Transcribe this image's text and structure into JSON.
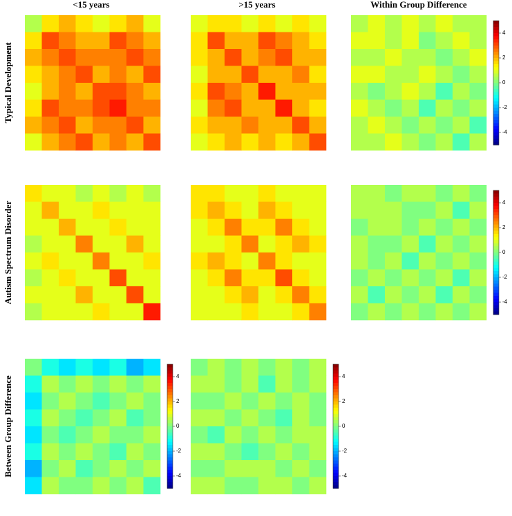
{
  "column_titles": [
    "<15 years",
    ">15 years",
    "Within Group Difference"
  ],
  "row_titles": [
    "Typical Development",
    "Autism Spectrum Disorder",
    "Between Group Difference"
  ],
  "chart_data": [
    {
      "type": "heatmap",
      "zlim": [
        -5,
        5
      ],
      "colorbar": false,
      "values": [
        [
          0.5,
          1.5,
          2,
          1.5,
          1,
          1.5,
          2,
          1
        ],
        [
          1.5,
          3,
          2.5,
          2,
          2,
          3,
          2.5,
          2
        ],
        [
          2,
          2.5,
          3,
          2.5,
          2.5,
          2.5,
          3,
          2.5
        ],
        [
          1.5,
          2,
          2.5,
          3,
          2,
          2.5,
          2,
          3
        ],
        [
          1,
          2,
          2.5,
          2,
          3,
          3,
          2.5,
          2
        ],
        [
          1.5,
          3,
          2.5,
          2.5,
          3,
          3.5,
          2.5,
          2.5
        ],
        [
          2,
          2.5,
          3,
          2,
          2.5,
          2.5,
          3,
          2
        ],
        [
          1,
          2,
          2.5,
          3,
          2,
          2.5,
          2,
          3
        ]
      ]
    },
    {
      "type": "heatmap",
      "zlim": [
        -5,
        5
      ],
      "colorbar": false,
      "values": [
        [
          1,
          1.5,
          1.5,
          1,
          1.5,
          1,
          1.5,
          1
        ],
        [
          1.5,
          3,
          2,
          2,
          3,
          2.5,
          2,
          1.5
        ],
        [
          1.5,
          2,
          3,
          2,
          2.5,
          3,
          2,
          2
        ],
        [
          1,
          2,
          2,
          3,
          2,
          2,
          2.5,
          1.5
        ],
        [
          1.5,
          3,
          2.5,
          2,
          3.5,
          2,
          2,
          2
        ],
        [
          1,
          2.5,
          3,
          2,
          2,
          3.5,
          2,
          1.5
        ],
        [
          1.5,
          2,
          2,
          2.5,
          2,
          2,
          3,
          2
        ],
        [
          1,
          1.5,
          2,
          1.5,
          2,
          1.5,
          2,
          3
        ]
      ]
    },
    {
      "type": "heatmap",
      "zlim": [
        -5,
        5
      ],
      "colorbar": true,
      "zticks": [
        4,
        2,
        0,
        -2,
        -4
      ],
      "values": [
        [
          0.5,
          1,
          0.5,
          1,
          0.5,
          1,
          0.5,
          0.5
        ],
        [
          1,
          1,
          0.5,
          1,
          0,
          0.5,
          1,
          0.5
        ],
        [
          0.5,
          0.5,
          1,
          0.5,
          0.5,
          0,
          0.5,
          1
        ],
        [
          1,
          1,
          0.5,
          0.5,
          1,
          0.5,
          0,
          0.5
        ],
        [
          0.5,
          0,
          0.5,
          1,
          0.5,
          -0.5,
          0.5,
          0
        ],
        [
          1,
          0.5,
          0,
          0.5,
          -0.5,
          0.5,
          0,
          0.5
        ],
        [
          0.5,
          1,
          0.5,
          0,
          0.5,
          0,
          0.5,
          -0.5
        ],
        [
          0.5,
          0.5,
          1,
          0.5,
          0,
          0.5,
          -0.5,
          0.5
        ]
      ]
    },
    {
      "type": "heatmap",
      "zlim": [
        -5,
        5
      ],
      "colorbar": false,
      "values": [
        [
          1.5,
          1,
          1,
          0.5,
          1,
          0.5,
          1,
          0.5
        ],
        [
          1,
          2,
          1,
          1,
          1.5,
          1,
          1,
          1
        ],
        [
          1,
          1,
          2,
          1,
          1,
          1.5,
          1,
          1
        ],
        [
          0.5,
          1,
          1,
          2.5,
          1,
          1,
          2,
          1
        ],
        [
          1,
          1.5,
          1,
          1,
          2.5,
          1,
          1,
          1.5
        ],
        [
          0.5,
          1,
          1.5,
          1,
          1,
          3,
          1,
          1
        ],
        [
          1,
          1,
          1,
          2,
          1,
          1,
          3,
          1
        ],
        [
          0.5,
          1,
          1,
          1,
          1.5,
          1,
          1,
          3.5
        ]
      ]
    },
    {
      "type": "heatmap",
      "zlim": [
        -5,
        5
      ],
      "colorbar": false,
      "values": [
        [
          1.5,
          1.5,
          1,
          1,
          1.5,
          1,
          1,
          1
        ],
        [
          1.5,
          2,
          1.5,
          1,
          2,
          1.5,
          1,
          1
        ],
        [
          1,
          1.5,
          2.5,
          1.5,
          1.5,
          2.5,
          1.5,
          1
        ],
        [
          1,
          1,
          1.5,
          2.5,
          1,
          1.5,
          2,
          1.5
        ],
        [
          1.5,
          2,
          1.5,
          1,
          2.5,
          1.5,
          1,
          1
        ],
        [
          1,
          1.5,
          2.5,
          1.5,
          1.5,
          3,
          1.5,
          1
        ],
        [
          1,
          1,
          1.5,
          2,
          1,
          1.5,
          2.5,
          1.5
        ],
        [
          1,
          1,
          1,
          1.5,
          1,
          1,
          1.5,
          2.5
        ]
      ]
    },
    {
      "type": "heatmap",
      "zlim": [
        -5,
        5
      ],
      "colorbar": true,
      "zticks": [
        4,
        2,
        0,
        -2,
        -4
      ],
      "values": [
        [
          0.5,
          0.5,
          0,
          0.5,
          0.5,
          0,
          0.5,
          0
        ],
        [
          0.5,
          0.5,
          0.5,
          0,
          0,
          0.5,
          -0.5,
          0.5
        ],
        [
          0,
          0.5,
          0.5,
          0,
          0.5,
          0,
          0.5,
          0
        ],
        [
          0.5,
          0,
          0,
          0.5,
          -0.5,
          0.5,
          0,
          0.5
        ],
        [
          0.5,
          0,
          0.5,
          -0.5,
          0.5,
          0,
          0.5,
          0
        ],
        [
          0,
          0.5,
          0,
          0.5,
          0,
          0.5,
          -0.5,
          0.5
        ],
        [
          0.5,
          -0.5,
          0.5,
          0,
          0.5,
          -0.5,
          0.5,
          0
        ],
        [
          0,
          0.5,
          0,
          0.5,
          0,
          0.5,
          0,
          0.5
        ]
      ]
    },
    {
      "type": "heatmap",
      "zlim": [
        -5,
        5
      ],
      "colorbar": true,
      "zticks": [
        4,
        2,
        0,
        -2,
        -4
      ],
      "values": [
        [
          0,
          -1,
          -1.5,
          -1,
          -1.5,
          -1,
          -2,
          -1.5
        ],
        [
          -1,
          0.5,
          0,
          0.5,
          0,
          0.5,
          0,
          0.5
        ],
        [
          -1.5,
          0,
          0.5,
          0,
          -0.5,
          0,
          0.5,
          0
        ],
        [
          -1,
          0.5,
          0,
          -0.5,
          0,
          0.5,
          -0.5,
          0
        ],
        [
          -1.5,
          0,
          -0.5,
          0,
          0.5,
          0,
          0,
          0.5
        ],
        [
          -1,
          0.5,
          0,
          0.5,
          0,
          -0.5,
          0.5,
          0
        ],
        [
          -2,
          0,
          0.5,
          -0.5,
          0,
          0.5,
          0,
          0.5
        ],
        [
          -1.5,
          0.5,
          0,
          0,
          0.5,
          0,
          0.5,
          -0.5
        ]
      ]
    },
    {
      "type": "heatmap",
      "zlim": [
        -5,
        5
      ],
      "colorbar": true,
      "zticks": [
        4,
        2,
        0,
        -2,
        -4
      ],
      "values": [
        [
          0,
          0.5,
          0,
          0.5,
          0,
          0.5,
          0,
          0.5
        ],
        [
          0.5,
          0.5,
          0,
          0.5,
          -0.5,
          0.5,
          0,
          0.5
        ],
        [
          0,
          0,
          0.5,
          0,
          0.5,
          0,
          0.5,
          0
        ],
        [
          0.5,
          0.5,
          0,
          0.5,
          0,
          -0.5,
          0.5,
          0
        ],
        [
          0,
          -0.5,
          0.5,
          0,
          0.5,
          0,
          0.5,
          0.5
        ],
        [
          0.5,
          0.5,
          0,
          -0.5,
          0,
          0.5,
          0,
          0.5
        ],
        [
          0,
          0,
          0.5,
          0.5,
          0.5,
          0,
          0.5,
          0
        ],
        [
          0.5,
          0.5,
          0,
          0,
          0.5,
          0.5,
          0,
          0.5
        ]
      ]
    }
  ]
}
